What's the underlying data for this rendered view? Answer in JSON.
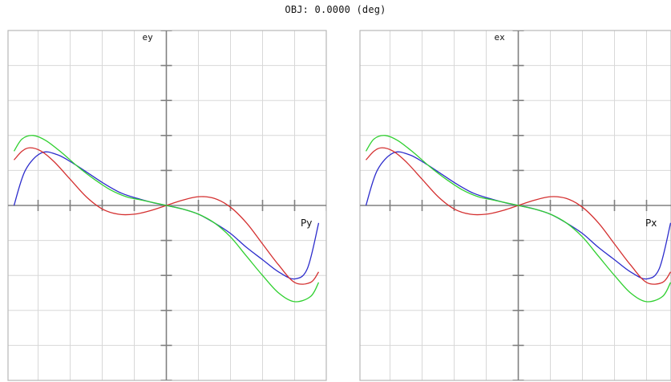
{
  "title": "OBJ: 0.0000 (deg)",
  "chart_data": [
    {
      "type": "line",
      "ylabel": "ey",
      "xlabel": "Py",
      "xlim": [
        -1,
        1
      ],
      "ylim": [
        -1,
        1
      ],
      "grid": true,
      "series": [
        {
          "color": "#2c2ccc",
          "x": [
            -0.95,
            -0.88,
            -0.78,
            -0.68,
            -0.58,
            -0.48,
            -0.38,
            -0.28,
            -0.18,
            -0.08,
            0.0,
            0.1,
            0.2,
            0.3,
            0.4,
            0.5,
            0.6,
            0.7,
            0.8,
            0.88,
            0.95
          ],
          "y": [
            0.0,
            0.2,
            0.3,
            0.29,
            0.24,
            0.18,
            0.12,
            0.07,
            0.04,
            0.015,
            0.0,
            -0.02,
            -0.05,
            -0.1,
            -0.16,
            -0.24,
            -0.31,
            -0.38,
            -0.42,
            -0.36,
            -0.1
          ]
        },
        {
          "color": "#d43030",
          "x": [
            -0.95,
            -0.9,
            -0.85,
            -0.78,
            -0.7,
            -0.6,
            -0.5,
            -0.4,
            -0.3,
            -0.2,
            -0.1,
            0.0,
            0.1,
            0.2,
            0.3,
            0.4,
            0.5,
            0.6,
            0.7,
            0.8,
            0.9,
            0.95
          ],
          "y": [
            0.26,
            0.31,
            0.33,
            0.31,
            0.25,
            0.15,
            0.05,
            -0.02,
            -0.05,
            -0.05,
            -0.03,
            0.0,
            0.03,
            0.05,
            0.04,
            -0.01,
            -0.1,
            -0.22,
            -0.34,
            -0.44,
            -0.44,
            -0.38
          ]
        },
        {
          "color": "#30d030",
          "x": [
            -0.95,
            -0.9,
            -0.83,
            -0.75,
            -0.65,
            -0.55,
            -0.45,
            -0.35,
            -0.25,
            -0.15,
            -0.05,
            0.0,
            0.1,
            0.2,
            0.3,
            0.4,
            0.5,
            0.6,
            0.7,
            0.8,
            0.9,
            0.95
          ],
          "y": [
            0.31,
            0.38,
            0.4,
            0.37,
            0.3,
            0.22,
            0.15,
            0.09,
            0.05,
            0.03,
            0.01,
            0.0,
            -0.02,
            -0.05,
            -0.1,
            -0.18,
            -0.29,
            -0.4,
            -0.5,
            -0.55,
            -0.52,
            -0.44
          ]
        }
      ]
    },
    {
      "type": "line",
      "ylabel": "ex",
      "xlabel": "Px",
      "xlim": [
        -1,
        1
      ],
      "ylim": [
        -1,
        1
      ],
      "grid": true,
      "series": [
        {
          "color": "#2c2ccc",
          "x": [
            -0.95,
            -0.88,
            -0.78,
            -0.68,
            -0.58,
            -0.48,
            -0.38,
            -0.28,
            -0.18,
            -0.08,
            0.0,
            0.1,
            0.2,
            0.3,
            0.4,
            0.5,
            0.6,
            0.7,
            0.8,
            0.88,
            0.95
          ],
          "y": [
            0.0,
            0.2,
            0.3,
            0.29,
            0.24,
            0.18,
            0.12,
            0.07,
            0.04,
            0.015,
            0.0,
            -0.02,
            -0.05,
            -0.1,
            -0.16,
            -0.24,
            -0.31,
            -0.38,
            -0.42,
            -0.36,
            -0.1
          ]
        },
        {
          "color": "#d43030",
          "x": [
            -0.95,
            -0.9,
            -0.85,
            -0.78,
            -0.7,
            -0.6,
            -0.5,
            -0.4,
            -0.3,
            -0.2,
            -0.1,
            0.0,
            0.1,
            0.2,
            0.3,
            0.4,
            0.5,
            0.6,
            0.7,
            0.8,
            0.9,
            0.95
          ],
          "y": [
            0.26,
            0.31,
            0.33,
            0.31,
            0.25,
            0.15,
            0.05,
            -0.02,
            -0.05,
            -0.05,
            -0.03,
            0.0,
            0.03,
            0.05,
            0.04,
            -0.01,
            -0.1,
            -0.22,
            -0.34,
            -0.44,
            -0.44,
            -0.38
          ]
        },
        {
          "color": "#30d030",
          "x": [
            -0.95,
            -0.9,
            -0.83,
            -0.75,
            -0.65,
            -0.55,
            -0.45,
            -0.35,
            -0.25,
            -0.15,
            -0.05,
            0.0,
            0.1,
            0.2,
            0.3,
            0.4,
            0.5,
            0.6,
            0.7,
            0.8,
            0.9,
            0.95
          ],
          "y": [
            0.31,
            0.38,
            0.4,
            0.37,
            0.3,
            0.22,
            0.15,
            0.09,
            0.05,
            0.03,
            0.01,
            0.0,
            -0.02,
            -0.05,
            -0.1,
            -0.18,
            -0.29,
            -0.4,
            -0.5,
            -0.55,
            -0.52,
            -0.44
          ]
        }
      ]
    }
  ],
  "colors": {
    "grid": "#d8d8d8",
    "frame": "#b8b8b8",
    "axis": "#808080"
  }
}
